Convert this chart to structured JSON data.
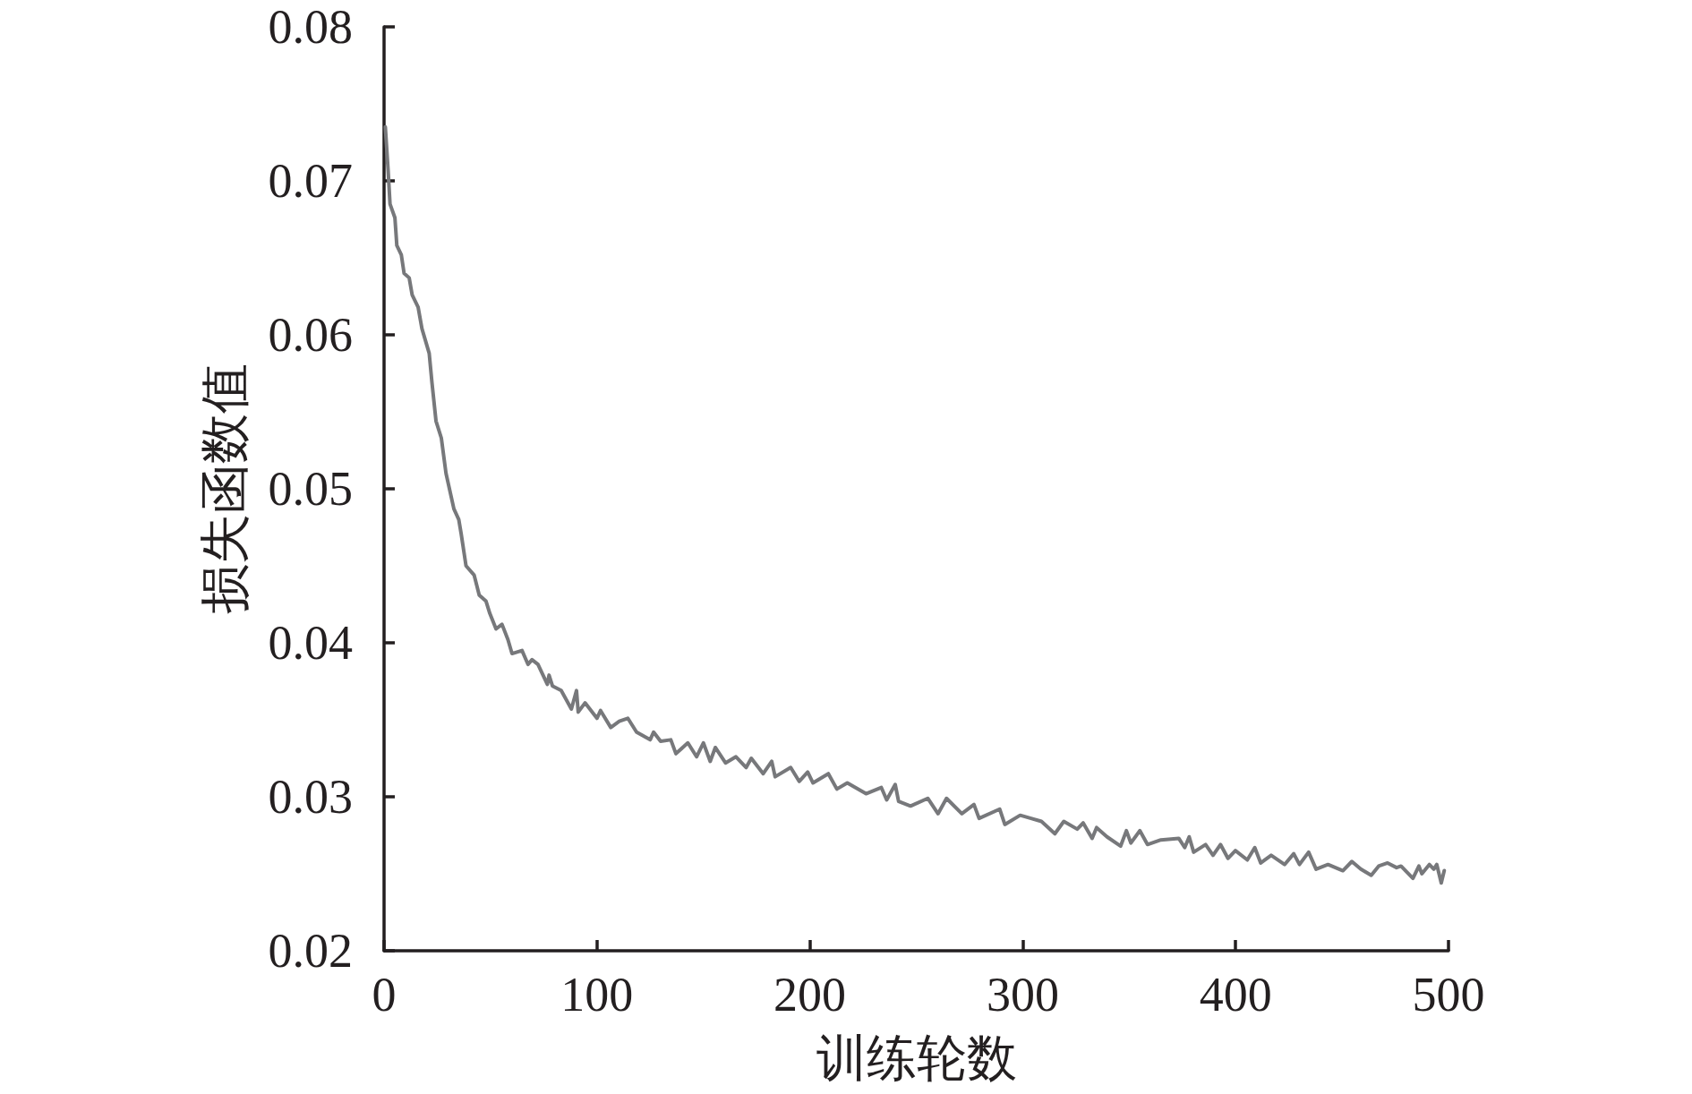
{
  "chart_data": {
    "type": "line",
    "xlabel": "训练轮数",
    "ylabel": "损失函数值",
    "xlim": [
      0,
      500
    ],
    "xticks": [
      0,
      100,
      200,
      300,
      400,
      500
    ],
    "ylim": [
      0.02,
      0.08
    ],
    "yticks": [
      0.02,
      0.03,
      0.04,
      0.05,
      0.06,
      0.07,
      0.08
    ],
    "grid": false,
    "marker": "none",
    "line_style": "solid",
    "x": [
      0.6,
      1.9,
      2.8,
      5.1,
      6.0,
      8.1,
      9.4,
      11.8,
      13.2,
      16.0,
      17.8,
      21.2,
      22.5,
      24.4,
      26.9,
      29.1,
      32.8,
      35.1,
      36.2,
      38.5,
      42.3,
      44.7,
      47.9,
      49.7,
      52.6,
      55.4,
      58.2,
      60.1,
      64.8,
      67.6,
      69.5,
      72.3,
      76.7,
      77.5,
      79.1,
      83.2,
      88.0,
      90.4,
      91.2,
      94.4,
      100.0,
      101.7,
      106.5,
      110.5,
      114.5,
      118.6,
      125.0,
      126.6,
      129.9,
      134.7,
      137.1,
      142.7,
      146.8,
      150.0,
      153.2,
      155.6,
      160.4,
      165.3,
      170.1,
      172.5,
      178.1,
      182.1,
      183.7,
      191.0,
      195.0,
      199.0,
      201.5,
      208.7,
      212.7,
      217.6,
      226.4,
      233.6,
      236.1,
      240.1,
      241.7,
      247.3,
      255.4,
      260.2,
      264.2,
      271.4,
      277.1,
      279.5,
      289.2,
      291.6,
      298.8,
      303.9,
      308.8,
      315.1,
      319.3,
      325.6,
      328.4,
      332.6,
      334.7,
      339.6,
      346.0,
      348.7,
      350.8,
      355.0,
      358.6,
      364.9,
      373.3,
      376.1,
      378.2,
      380.3,
      385.9,
      389.4,
      392.9,
      396.4,
      399.9,
      405.5,
      409.0,
      411.8,
      416.7,
      423.0,
      427.3,
      430.0,
      434.3,
      437.8,
      443.4,
      450.4,
      454.6,
      458.8,
      463.7,
      467.2,
      471.4,
      475.6,
      477.7,
      483.3,
      486.1,
      487.5,
      491.0,
      493.1,
      494.5,
      496.6,
      498.0
    ],
    "series": [
      {
        "color": "#77787b",
        "values": [
          0.0735,
          0.0707,
          0.0685,
          0.0676,
          0.0658,
          0.0652,
          0.064,
          0.0637,
          0.0626,
          0.0618,
          0.0604,
          0.0588,
          0.0569,
          0.0544,
          0.0533,
          0.051,
          0.0487,
          0.048,
          0.0471,
          0.045,
          0.0444,
          0.0431,
          0.0427,
          0.0419,
          0.0409,
          0.0412,
          0.0402,
          0.0393,
          0.0395,
          0.0386,
          0.0389,
          0.0386,
          0.0373,
          0.0379,
          0.0372,
          0.0369,
          0.0357,
          0.0369,
          0.0355,
          0.0361,
          0.0351,
          0.0356,
          0.0345,
          0.0349,
          0.0351,
          0.0342,
          0.0337,
          0.0342,
          0.0336,
          0.0337,
          0.0328,
          0.0335,
          0.0326,
          0.0335,
          0.0323,
          0.0332,
          0.0322,
          0.0326,
          0.0319,
          0.0325,
          0.0315,
          0.0323,
          0.0313,
          0.0319,
          0.031,
          0.0316,
          0.0309,
          0.0315,
          0.0305,
          0.0309,
          0.0302,
          0.0306,
          0.0298,
          0.0308,
          0.0297,
          0.0294,
          0.0299,
          0.0289,
          0.0299,
          0.0289,
          0.0295,
          0.0286,
          0.0292,
          0.0282,
          0.0288,
          0.0286,
          0.0284,
          0.0276,
          0.0284,
          0.0279,
          0.0283,
          0.0273,
          0.028,
          0.0274,
          0.0268,
          0.0278,
          0.027,
          0.0278,
          0.0269,
          0.0272,
          0.0273,
          0.0267,
          0.0274,
          0.0264,
          0.0269,
          0.0262,
          0.0269,
          0.026,
          0.0265,
          0.0259,
          0.0267,
          0.0257,
          0.0262,
          0.0256,
          0.0263,
          0.0256,
          0.0264,
          0.0253,
          0.0256,
          0.0252,
          0.0258,
          0.0253,
          0.0249,
          0.0255,
          0.0257,
          0.0254,
          0.0255,
          0.0247,
          0.0255,
          0.025,
          0.0256,
          0.0253,
          0.0256,
          0.0244,
          0.0252
        ]
      }
    ]
  }
}
